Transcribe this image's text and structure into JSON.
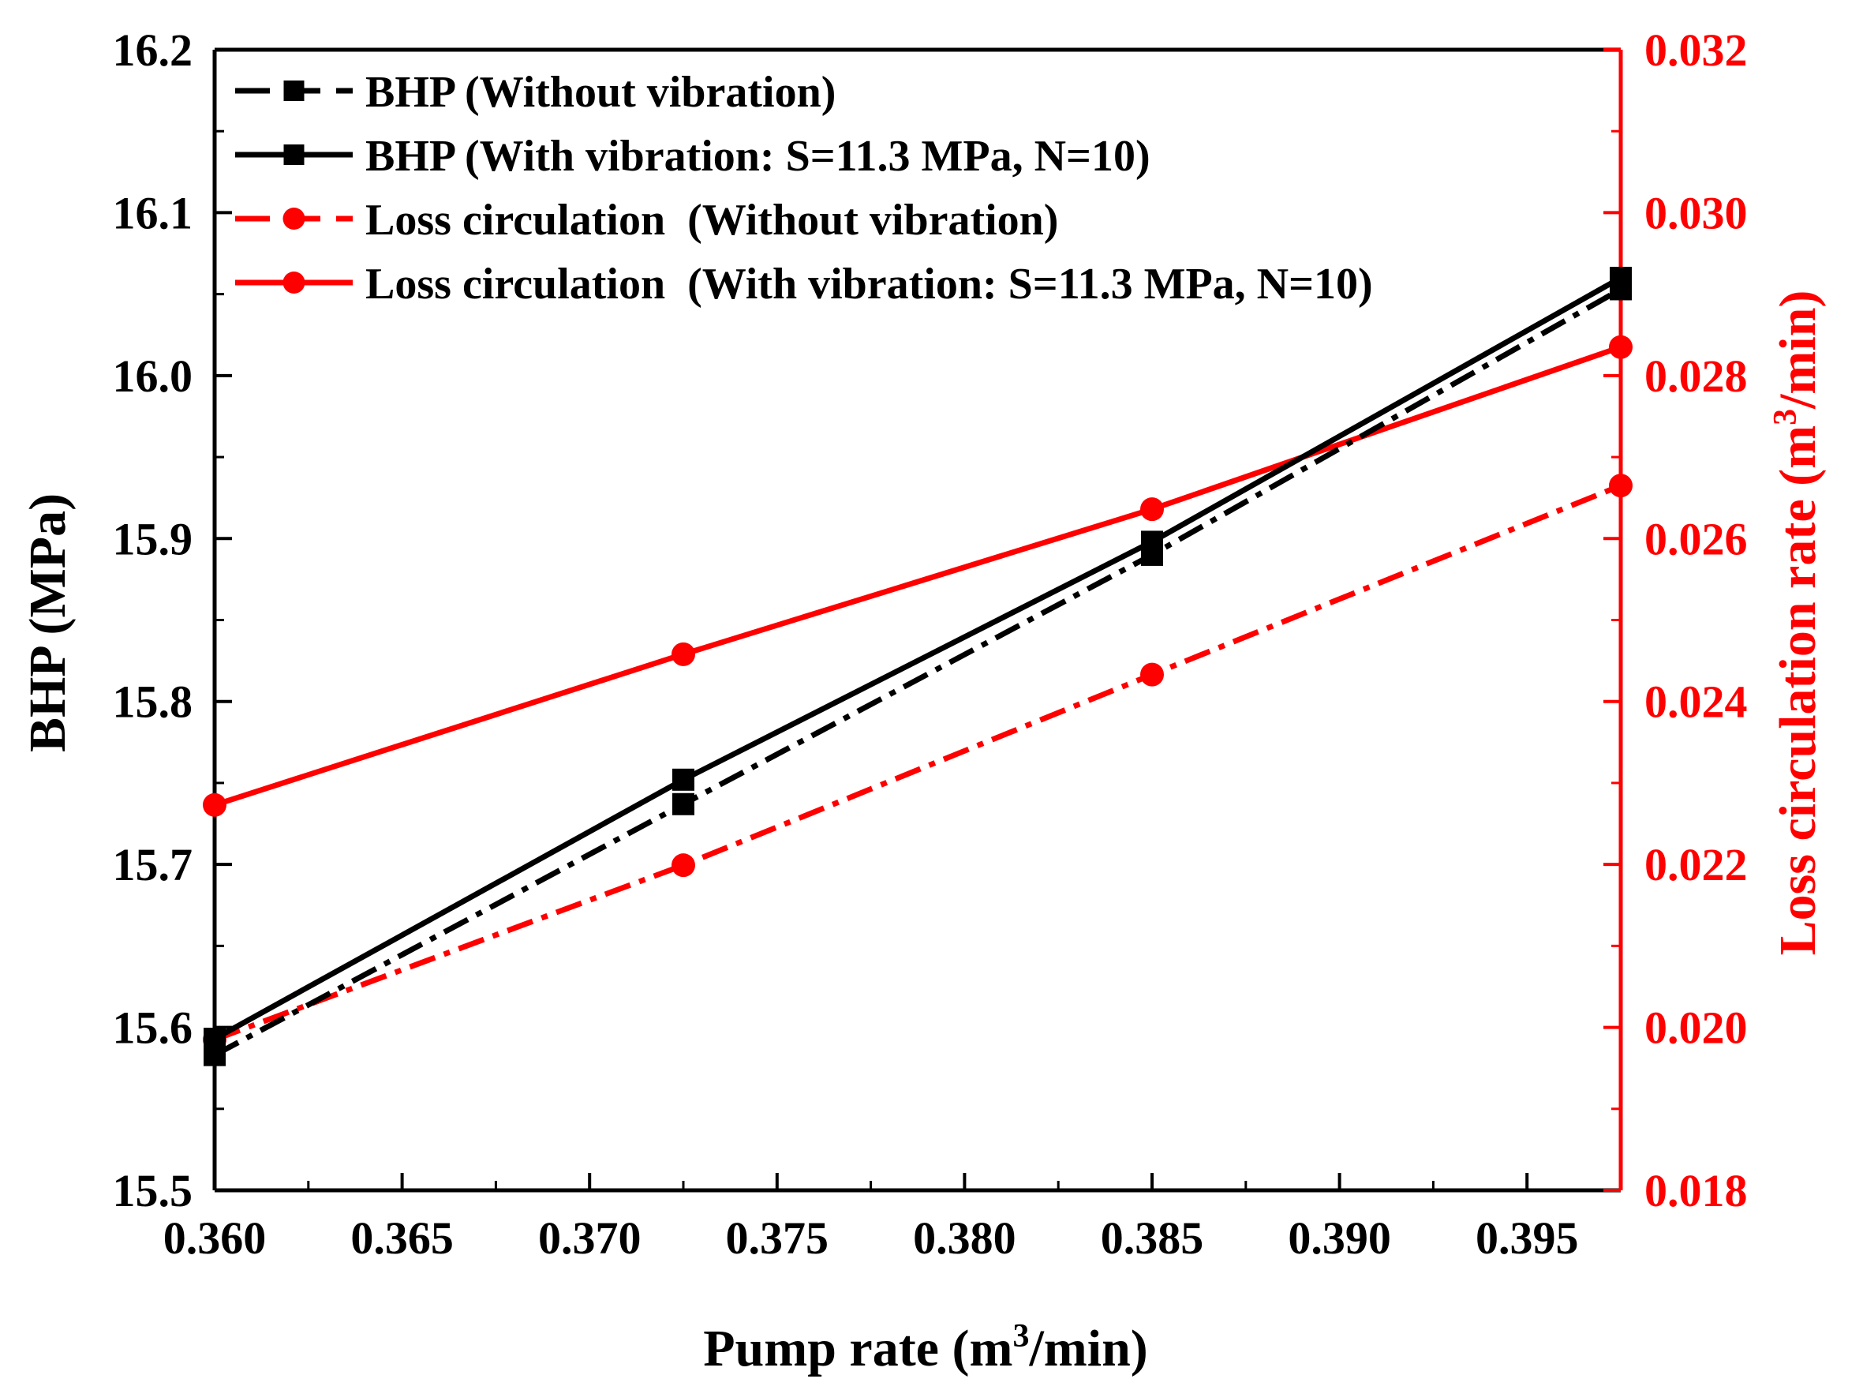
{
  "chart_data": {
    "type": "line",
    "dual_axis": true,
    "xlabel": "Pump rate (m3/min)",
    "ylabel_left": "BHP (MPa)",
    "ylabel_right": "Loss circulation rate (m3/min)",
    "xlim": [
      0.36,
      0.3975
    ],
    "xticks": [
      "0.360",
      "0.365",
      "0.370",
      "0.375",
      "0.380",
      "0.385",
      "0.390",
      "0.395"
    ],
    "ylim_left": [
      15.5,
      16.2
    ],
    "yticks_left": [
      "15.5",
      "15.6",
      "15.7",
      "15.8",
      "15.9",
      "16.0",
      "16.1",
      "16.2"
    ],
    "ylim_right": [
      0.018,
      0.032
    ],
    "yticks_right": [
      "0.018",
      "0.020",
      "0.022",
      "0.024",
      "0.026",
      "0.028",
      "0.030",
      "0.032"
    ],
    "legend_position": "top-left",
    "x": [
      0.36,
      0.3725,
      0.385,
      0.3975
    ],
    "series": [
      {
        "name": "BHP (Without vibration)",
        "axis": "left",
        "values": [
          15.583,
          15.737,
          15.89,
          16.053
        ],
        "color": "#000000",
        "style": "dashdot",
        "marker": "square"
      },
      {
        "name": "BHP (With vibration: S=11.3 MPa, N=10)",
        "axis": "left",
        "values": [
          15.593,
          15.752,
          15.898,
          16.06
        ],
        "color": "#000000",
        "style": "solid",
        "marker": "square"
      },
      {
        "name": "Loss circulation  (Without vibration)",
        "axis": "right",
        "values": [
          0.01985,
          0.02199,
          0.02433,
          0.02665
        ],
        "color": "#ff0000",
        "style": "dashdot",
        "marker": "circle"
      },
      {
        "name": "Loss circulation  (With vibration: S=11.3 MPa, N=10)",
        "axis": "right",
        "values": [
          0.02273,
          0.02458,
          0.02636,
          0.02835
        ],
        "color": "#ff0000",
        "style": "solid",
        "marker": "circle"
      }
    ]
  },
  "axis_titles": {
    "x_main": "Pump rate (m",
    "x_sup": "3",
    "x_tail": "/min)",
    "left": "BHP (MPa)",
    "right_main": "Loss circulation rate (m",
    "right_sup": "3",
    "right_tail": "/min)"
  },
  "colors": {
    "axis": "#000000",
    "right_axis": "#ff0000"
  }
}
